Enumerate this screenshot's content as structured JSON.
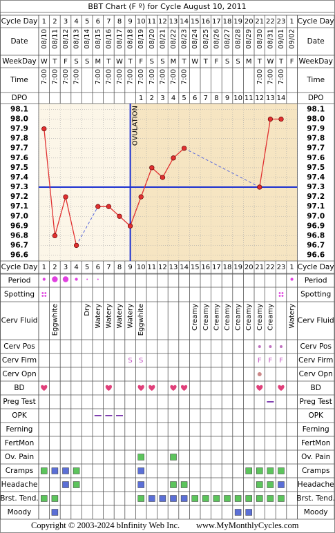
{
  "title": "BBT Chart (F º) for Cycle August 10, 2011",
  "footer": {
    "copyright": "Copyright © 2003-2024 bInfinity Web Inc.",
    "site": "www.MyMonthlyCycles.com"
  },
  "labels": {
    "cycle_day": "Cycle Day",
    "date": "Date",
    "weekday": "WeekDay",
    "time": "Time",
    "dpo": "DPO"
  },
  "days": {
    "cycle_day": [
      1,
      2,
      3,
      4,
      5,
      6,
      7,
      8,
      9,
      10,
      11,
      12,
      13,
      14,
      15,
      16,
      17,
      18,
      19,
      20,
      21,
      22,
      23,
      1
    ],
    "dates": [
      "08/10",
      "08/11",
      "08/12",
      "08/13",
      "08/14",
      "08/15",
      "08/16",
      "08/17",
      "08/18",
      "08/19",
      "08/20",
      "08/21",
      "08/22",
      "08/23",
      "08/24",
      "08/25",
      "08/26",
      "08/27",
      "08/28",
      "08/29",
      "08/30",
      "08/31",
      "09/01",
      "09/02"
    ],
    "weekdays": [
      "W",
      "T",
      "F",
      "S",
      "S",
      "M",
      "T",
      "W",
      "T",
      "F",
      "S",
      "S",
      "M",
      "T",
      "W",
      "T",
      "F",
      "S",
      "S",
      "M",
      "T",
      "W",
      "T",
      "F"
    ],
    "times": [
      "7:00",
      "7:00",
      "7:00",
      "7:00",
      null,
      "7:00",
      "7:00",
      "7:00",
      "7:00",
      "7:00",
      "7:00",
      "7:00",
      "7:00",
      "7:00",
      null,
      null,
      null,
      null,
      null,
      null,
      "7:00",
      "7:00",
      "7:00",
      null
    ],
    "dpo": [
      null,
      null,
      null,
      null,
      null,
      null,
      null,
      null,
      null,
      1,
      2,
      3,
      4,
      5,
      6,
      7,
      8,
      9,
      10,
      11,
      12,
      13,
      14,
      null
    ]
  },
  "chart_data": {
    "type": "line",
    "values": [
      97.9,
      96.8,
      97.2,
      96.7,
      null,
      97.1,
      97.1,
      97.0,
      96.9,
      97.2,
      97.5,
      97.4,
      97.6,
      97.7,
      null,
      null,
      null,
      null,
      null,
      null,
      97.3,
      98.0,
      98.0,
      null
    ],
    "color": "#e03030",
    "ylim": [
      96.54,
      98.16
    ],
    "yticks": [
      98.1,
      {
        "value": 98,
        "label": "98.0"
      },
      97.9,
      97.8,
      97.7,
      97.6,
      97.5,
      97.4,
      97.3,
      97.2,
      97.1,
      {
        "value": 97,
        "label": "97.0"
      },
      96.9,
      96.8,
      96.7,
      96.6
    ],
    "coverline": 97.3,
    "coverline_color": "#1a2fd0",
    "ovulation_day": 9,
    "ovulation_label": "OVULATION",
    "grid": true
  },
  "square_colors": [
    "#5cc45c",
    "#5b6fd6"
  ],
  "symptoms": {
    "period": {
      "label": "Period",
      "values": [
        1,
        2,
        2,
        1,
        0.5,
        0.5,
        null,
        null,
        null,
        null,
        null,
        null,
        null,
        null,
        null,
        null,
        null,
        null,
        null,
        null,
        null,
        null,
        null,
        1
      ]
    },
    "spotting": {
      "label": "Spotting",
      "values": [
        1,
        null,
        null,
        null,
        null,
        null,
        null,
        null,
        null,
        null,
        null,
        null,
        null,
        null,
        null,
        null,
        null,
        null,
        null,
        null,
        null,
        null,
        1,
        null
      ]
    },
    "cervical_fluid": {
      "label": "Cerv Fluid",
      "values": [
        null,
        "Eggwhite",
        null,
        null,
        "Dry",
        "Watery",
        "Watery",
        "Watery",
        "Watery",
        "Eggwhite",
        null,
        null,
        null,
        null,
        "Creamy",
        "Creamy",
        "Creamy",
        "Creamy",
        "Creamy",
        "Creamy",
        "Creamy",
        "Creamy",
        null,
        "Watery"
      ]
    },
    "cervix_position": {
      "label": "Cerv Pos",
      "values": [
        null,
        null,
        null,
        null,
        null,
        null,
        null,
        null,
        null,
        null,
        null,
        null,
        null,
        null,
        null,
        null,
        null,
        null,
        null,
        null,
        1,
        1,
        1,
        null
      ]
    },
    "cervix_firmness": {
      "label": "Cerv Firm",
      "values": [
        null,
        null,
        null,
        null,
        null,
        null,
        null,
        null,
        "S",
        "S",
        null,
        null,
        null,
        null,
        null,
        null,
        null,
        null,
        null,
        null,
        "F",
        "F",
        "F",
        null
      ]
    },
    "cervix_opening": {
      "label": "Cerv Opn",
      "values": [
        null,
        null,
        null,
        null,
        null,
        null,
        null,
        null,
        null,
        null,
        null,
        null,
        null,
        null,
        null,
        null,
        null,
        null,
        null,
        null,
        1,
        null,
        null,
        null
      ]
    },
    "bd": {
      "label": "BD",
      "values": [
        1,
        null,
        null,
        null,
        null,
        null,
        1,
        null,
        null,
        1,
        1,
        null,
        1,
        1,
        null,
        null,
        null,
        null,
        null,
        null,
        1,
        null,
        1,
        null
      ]
    },
    "preg_test": {
      "label": "Preg Test",
      "values": [
        null,
        null,
        null,
        null,
        null,
        null,
        null,
        null,
        null,
        null,
        null,
        null,
        null,
        null,
        null,
        null,
        null,
        null,
        null,
        null,
        null,
        1,
        null,
        null
      ]
    },
    "opk": {
      "label": "OPK",
      "values": [
        null,
        null,
        null,
        null,
        null,
        1,
        1,
        1,
        null,
        null,
        null,
        null,
        null,
        null,
        null,
        null,
        null,
        null,
        null,
        null,
        null,
        null,
        null,
        null
      ]
    },
    "ferning": {
      "label": "Ferning",
      "values": [
        null,
        null,
        null,
        null,
        null,
        null,
        null,
        null,
        null,
        null,
        null,
        null,
        null,
        null,
        null,
        null,
        null,
        null,
        null,
        null,
        null,
        null,
        null,
        null
      ]
    },
    "fertmon": {
      "label": "FertMon",
      "values": [
        null,
        null,
        null,
        null,
        null,
        null,
        null,
        null,
        null,
        null,
        null,
        null,
        null,
        null,
        null,
        null,
        null,
        null,
        null,
        null,
        null,
        null,
        null,
        null
      ]
    },
    "ov_pain": {
      "label": "Ov. Pain",
      "values": [
        null,
        null,
        null,
        null,
        null,
        null,
        null,
        null,
        null,
        1,
        null,
        null,
        1,
        null,
        null,
        null,
        null,
        null,
        null,
        null,
        null,
        null,
        null,
        null
      ]
    },
    "cramps": {
      "label": "Cramps",
      "values": [
        1,
        2,
        2,
        1,
        null,
        null,
        null,
        null,
        null,
        2,
        null,
        null,
        null,
        null,
        null,
        null,
        null,
        null,
        null,
        1,
        1,
        1,
        1,
        null
      ]
    },
    "headache": {
      "label": "Headache",
      "values": [
        null,
        null,
        2,
        1,
        null,
        null,
        null,
        null,
        null,
        2,
        null,
        null,
        1,
        1,
        null,
        null,
        null,
        null,
        null,
        null,
        1,
        1,
        2,
        null
      ]
    },
    "breast_tenderness": {
      "label": "Brst. Tend.",
      "values": [
        1,
        1,
        null,
        null,
        null,
        null,
        null,
        null,
        null,
        1,
        2,
        2,
        2,
        2,
        1,
        1,
        1,
        1,
        1,
        1,
        1,
        1,
        1,
        null
      ]
    },
    "moody": {
      "label": "Moody",
      "values": [
        null,
        2,
        null,
        null,
        null,
        null,
        null,
        null,
        null,
        null,
        null,
        null,
        null,
        null,
        null,
        null,
        null,
        null,
        2,
        2,
        null,
        null,
        null,
        null
      ]
    }
  }
}
